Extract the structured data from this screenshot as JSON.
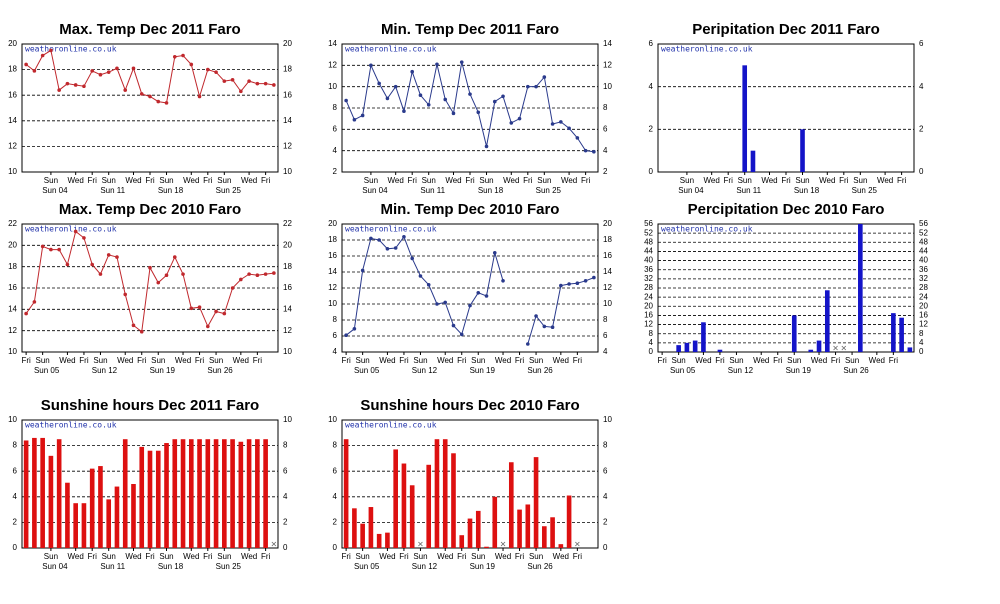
{
  "chart_data": [
    {
      "type": "line",
      "title": "Max. Temp Dec 2011 Faro",
      "watermark": "weatheronline.co.uk",
      "color": "#c0282d",
      "x": [
        1,
        2,
        3,
        4,
        5,
        6,
        7,
        8,
        9,
        10,
        11,
        12,
        13,
        14,
        15,
        16,
        17,
        18,
        19,
        20,
        21,
        22,
        23,
        24,
        25,
        26,
        27,
        28,
        29,
        30,
        31
      ],
      "values": [
        18.4,
        17.9,
        19.1,
        19.5,
        16.4,
        16.9,
        16.8,
        16.7,
        17.9,
        17.6,
        17.8,
        18.1,
        16.4,
        18.1,
        16.1,
        15.9,
        15.5,
        15.4,
        19.0,
        19.1,
        18.4,
        15.9,
        18.0,
        17.8,
        17.1,
        17.2,
        16.3,
        17.1,
        16.9,
        16.9,
        16.8
      ],
      "xlim": [
        0.5,
        31.5
      ],
      "ylim": [
        10,
        20
      ],
      "yticks": [
        10,
        12,
        14,
        16,
        18,
        20
      ],
      "grid": true,
      "xticks": [
        {
          "value": 4,
          "label": "Sun"
        },
        {
          "value": 7,
          "label": "Wed"
        },
        {
          "value": 9,
          "label": "Fri"
        },
        {
          "value": 11,
          "label": "Sun"
        },
        {
          "value": 14,
          "label": "Wed"
        },
        {
          "value": 16,
          "label": "Fri"
        },
        {
          "value": 18,
          "label": "Sun"
        },
        {
          "value": 21,
          "label": "Wed"
        },
        {
          "value": 23,
          "label": "Fri"
        },
        {
          "value": 25,
          "label": "Sun"
        },
        {
          "value": 28,
          "label": "Wed"
        },
        {
          "value": 30,
          "label": "Fri"
        }
      ],
      "week_ticks": [
        {
          "value": 4,
          "label": "Sun 04"
        },
        {
          "value": 11,
          "label": "Sun 11"
        },
        {
          "value": 18,
          "label": "Sun 18"
        },
        {
          "value": 25,
          "label": "Sun 25"
        }
      ]
    },
    {
      "type": "line",
      "title": "Min. Temp Dec 2011 Faro",
      "watermark": "weatheronline.co.uk",
      "color": "#2a3a8c",
      "x": [
        1,
        2,
        3,
        4,
        5,
        6,
        7,
        8,
        9,
        10,
        11,
        12,
        13,
        14,
        15,
        16,
        17,
        18,
        19,
        20,
        21,
        22,
        23,
        24,
        25,
        26,
        27,
        28,
        29,
        30,
        31
      ],
      "values": [
        8.7,
        6.9,
        7.3,
        12.0,
        10.3,
        8.9,
        10.0,
        7.7,
        11.4,
        9.2,
        8.3,
        12.1,
        8.8,
        7.5,
        12.3,
        9.3,
        7.6,
        4.4,
        8.6,
        9.1,
        6.6,
        7.0,
        10.0,
        10.0,
        10.9,
        6.5,
        6.7,
        6.1,
        5.2,
        4.0,
        3.9
      ],
      "xlim": [
        0.5,
        31.5
      ],
      "ylim": [
        2,
        14
      ],
      "yticks": [
        2,
        4,
        6,
        8,
        10,
        12,
        14
      ],
      "grid": true,
      "xticks": [
        {
          "value": 4,
          "label": "Sun"
        },
        {
          "value": 7,
          "label": "Wed"
        },
        {
          "value": 9,
          "label": "Fri"
        },
        {
          "value": 11,
          "label": "Sun"
        },
        {
          "value": 14,
          "label": "Wed"
        },
        {
          "value": 16,
          "label": "Fri"
        },
        {
          "value": 18,
          "label": "Sun"
        },
        {
          "value": 21,
          "label": "Wed"
        },
        {
          "value": 23,
          "label": "Fri"
        },
        {
          "value": 25,
          "label": "Sun"
        },
        {
          "value": 28,
          "label": "Wed"
        },
        {
          "value": 30,
          "label": "Fri"
        }
      ],
      "week_ticks": [
        {
          "value": 4,
          "label": "Sun 04"
        },
        {
          "value": 11,
          "label": "Sun 11"
        },
        {
          "value": 18,
          "label": "Sun 18"
        },
        {
          "value": 25,
          "label": "Sun 25"
        }
      ]
    },
    {
      "type": "bar",
      "title": "Peripitation Dec 2011 Faro",
      "watermark": "weatheronline.co.uk",
      "color": "#1414c8",
      "x": [
        1,
        2,
        3,
        4,
        5,
        6,
        7,
        8,
        9,
        10,
        11,
        12,
        13,
        14,
        15,
        16,
        17,
        18,
        19,
        20,
        21,
        22,
        23,
        24,
        25,
        26,
        27,
        28,
        29,
        30,
        31
      ],
      "values": [
        0,
        0,
        0,
        0,
        0,
        0,
        0,
        0,
        0,
        0,
        5,
        1,
        0,
        0,
        0,
        0,
        0,
        2,
        0,
        0,
        0,
        0,
        0,
        0,
        0,
        0,
        0,
        0,
        0,
        0,
        0
      ],
      "xlim": [
        0.5,
        31.5
      ],
      "ylim": [
        0,
        6
      ],
      "yticks": [
        0,
        2,
        4,
        6
      ],
      "grid": true,
      "xticks": [
        {
          "value": 4,
          "label": "Sun"
        },
        {
          "value": 7,
          "label": "Wed"
        },
        {
          "value": 9,
          "label": "Fri"
        },
        {
          "value": 11,
          "label": "Sun"
        },
        {
          "value": 14,
          "label": "Wed"
        },
        {
          "value": 16,
          "label": "Fri"
        },
        {
          "value": 18,
          "label": "Sun"
        },
        {
          "value": 21,
          "label": "Wed"
        },
        {
          "value": 23,
          "label": "Fri"
        },
        {
          "value": 25,
          "label": "Sun"
        },
        {
          "value": 28,
          "label": "Wed"
        },
        {
          "value": 30,
          "label": "Fri"
        }
      ],
      "week_ticks": [
        {
          "value": 4,
          "label": "Sun 04"
        },
        {
          "value": 11,
          "label": "Sun 11"
        },
        {
          "value": 18,
          "label": "Sun 18"
        },
        {
          "value": 25,
          "label": "Sun 25"
        }
      ]
    },
    {
      "type": "line",
      "title": "Max. Temp Dec 2010 Faro",
      "watermark": "weatheronline.co.uk",
      "color": "#c0282d",
      "x": [
        1,
        2,
        3,
        4,
        5,
        6,
        7,
        8,
        9,
        10,
        11,
        12,
        13,
        14,
        15,
        16,
        17,
        18,
        19,
        20,
        21,
        22,
        23,
        24,
        25,
        26,
        27,
        28,
        29,
        30,
        31
      ],
      "values": [
        13.6,
        14.7,
        19.9,
        19.6,
        19.6,
        18.2,
        21.3,
        20.7,
        18.2,
        17.3,
        19.1,
        18.9,
        15.4,
        12.5,
        11.9,
        17.9,
        16.5,
        17.2,
        18.9,
        17.3,
        14.1,
        14.2,
        12.4,
        13.8,
        13.6,
        16.0,
        16.8,
        17.3,
        17.2,
        17.3,
        17.4
      ],
      "xlim": [
        0.5,
        31.5
      ],
      "ylim": [
        10,
        22
      ],
      "yticks": [
        10,
        12,
        14,
        16,
        18,
        20,
        22
      ],
      "grid": true,
      "xticks": [
        {
          "value": 1,
          "label": "Fri"
        },
        {
          "value": 3,
          "label": "Sun"
        },
        {
          "value": 6,
          "label": "Wed"
        },
        {
          "value": 8,
          "label": "Fri"
        },
        {
          "value": 10,
          "label": "Sun"
        },
        {
          "value": 13,
          "label": "Wed"
        },
        {
          "value": 15,
          "label": "Fri"
        },
        {
          "value": 17,
          "label": "Sun"
        },
        {
          "value": 20,
          "label": "Wed"
        },
        {
          "value": 22,
          "label": "Fri"
        },
        {
          "value": 24,
          "label": "Sun"
        },
        {
          "value": 27,
          "label": "Wed"
        },
        {
          "value": 29,
          "label": "Fri"
        }
      ],
      "week_ticks": [
        {
          "value": 3,
          "label": "Sun 05"
        },
        {
          "value": 10,
          "label": "Sun 12"
        },
        {
          "value": 17,
          "label": "Sun 19"
        },
        {
          "value": 24,
          "label": "Sun 26"
        }
      ]
    },
    {
      "type": "line",
      "title": "Min. Temp Dec 2010 Faro",
      "watermark": "weatheronline.co.uk",
      "color": "#2a3a8c",
      "x": [
        1,
        2,
        3,
        4,
        5,
        6,
        7,
        8,
        9,
        10,
        11,
        12,
        13,
        14,
        15,
        16,
        17,
        18,
        19,
        20,
        21,
        22,
        23,
        24,
        25,
        26,
        27,
        28,
        29,
        30,
        31
      ],
      "values": [
        6.1,
        6.9,
        14.2,
        18.2,
        18.0,
        16.9,
        17.0,
        18.4,
        15.7,
        13.5,
        12.4,
        10.0,
        10.2,
        7.3,
        6.2,
        9.8,
        11.4,
        11.0,
        16.4,
        12.9,
        null,
        null,
        5.0,
        8.5,
        7.2,
        7.1,
        12.3,
        12.5,
        12.6,
        12.9,
        13.3
      ],
      "xlim": [
        0.5,
        31.5
      ],
      "ylim": [
        4,
        20
      ],
      "yticks": [
        4,
        6,
        8,
        10,
        12,
        14,
        16,
        18,
        20
      ],
      "grid": true,
      "xticks": [
        {
          "value": 1,
          "label": "Fri"
        },
        {
          "value": 3,
          "label": "Sun"
        },
        {
          "value": 6,
          "label": "Wed"
        },
        {
          "value": 8,
          "label": "Fri"
        },
        {
          "value": 10,
          "label": "Sun"
        },
        {
          "value": 13,
          "label": "Wed"
        },
        {
          "value": 15,
          "label": "Fri"
        },
        {
          "value": 17,
          "label": "Sun"
        },
        {
          "value": 20,
          "label": "Wed"
        },
        {
          "value": 22,
          "label": "Fri"
        },
        {
          "value": 24,
          "label": "Sun"
        },
        {
          "value": 27,
          "label": "Wed"
        },
        {
          "value": 29,
          "label": "Fri"
        }
      ],
      "week_ticks": [
        {
          "value": 3,
          "label": "Sun 05"
        },
        {
          "value": 10,
          "label": "Sun 12"
        },
        {
          "value": 17,
          "label": "Sun 19"
        },
        {
          "value": 24,
          "label": "Sun 26"
        }
      ]
    },
    {
      "type": "bar",
      "title": "Percipitation Dec 2010  Faro",
      "watermark": "weatheronline.co.uk",
      "color": "#1414c8",
      "x": [
        1,
        2,
        3,
        4,
        5,
        6,
        7,
        8,
        9,
        10,
        11,
        12,
        13,
        14,
        15,
        16,
        17,
        18,
        19,
        20,
        21,
        22,
        23,
        24,
        25,
        26,
        27,
        28,
        29,
        30,
        31
      ],
      "values": [
        0,
        0,
        3,
        4,
        5,
        13,
        0,
        1,
        0,
        0,
        0,
        0,
        0,
        0,
        0,
        0,
        16,
        0,
        1,
        5,
        27,
        null,
        null,
        0,
        56,
        0,
        0,
        0,
        17,
        15,
        2
      ],
      "xlim": [
        0.5,
        31.5
      ],
      "ylim": [
        0,
        56
      ],
      "yticks": [
        0,
        4,
        8,
        12,
        16,
        20,
        24,
        28,
        32,
        36,
        40,
        44,
        48,
        52,
        56
      ],
      "grid": true,
      "xticks": [
        {
          "value": 1,
          "label": "Fri"
        },
        {
          "value": 3,
          "label": "Sun"
        },
        {
          "value": 6,
          "label": "Wed"
        },
        {
          "value": 8,
          "label": "Fri"
        },
        {
          "value": 10,
          "label": "Sun"
        },
        {
          "value": 13,
          "label": "Wed"
        },
        {
          "value": 15,
          "label": "Fri"
        },
        {
          "value": 17,
          "label": "Sun"
        },
        {
          "value": 20,
          "label": "Wed"
        },
        {
          "value": 22,
          "label": "Fri"
        },
        {
          "value": 24,
          "label": "Sun"
        },
        {
          "value": 27,
          "label": "Wed"
        },
        {
          "value": 29,
          "label": "Fri"
        }
      ],
      "week_ticks": [
        {
          "value": 3,
          "label": "Sun 05"
        },
        {
          "value": 10,
          "label": "Sun 12"
        },
        {
          "value": 17,
          "label": "Sun 19"
        },
        {
          "value": 24,
          "label": "Sun 26"
        }
      ]
    },
    {
      "type": "bar",
      "title": "Sunshine hours Dec 2011 Faro",
      "watermark": "weatheronline.co.uk",
      "color": "#dd1010",
      "x": [
        1,
        2,
        3,
        4,
        5,
        6,
        7,
        8,
        9,
        10,
        11,
        12,
        13,
        14,
        15,
        16,
        17,
        18,
        19,
        20,
        21,
        22,
        23,
        24,
        25,
        26,
        27,
        28,
        29,
        30,
        31
      ],
      "values": [
        8.4,
        8.6,
        8.6,
        7.2,
        8.5,
        5.1,
        3.5,
        3.5,
        6.2,
        6.4,
        3.8,
        4.8,
        8.5,
        5.0,
        7.9,
        7.6,
        7.6,
        8.2,
        8.5,
        8.5,
        8.5,
        8.5,
        8.5,
        8.5,
        8.5,
        8.5,
        8.3,
        8.5,
        8.5,
        8.5,
        null
      ],
      "xlim": [
        0.5,
        31.5
      ],
      "ylim": [
        0,
        10
      ],
      "yticks": [
        0,
        2,
        4,
        6,
        8,
        10
      ],
      "grid": true,
      "xticks": [
        {
          "value": 4,
          "label": "Sun"
        },
        {
          "value": 7,
          "label": "Wed"
        },
        {
          "value": 9,
          "label": "Fri"
        },
        {
          "value": 11,
          "label": "Sun"
        },
        {
          "value": 14,
          "label": "Wed"
        },
        {
          "value": 16,
          "label": "Fri"
        },
        {
          "value": 18,
          "label": "Sun"
        },
        {
          "value": 21,
          "label": "Wed"
        },
        {
          "value": 23,
          "label": "Fri"
        },
        {
          "value": 25,
          "label": "Sun"
        },
        {
          "value": 28,
          "label": "Wed"
        },
        {
          "value": 30,
          "label": "Fri"
        }
      ],
      "week_ticks": [
        {
          "value": 4,
          "label": "Sun 04"
        },
        {
          "value": 11,
          "label": "Sun 11"
        },
        {
          "value": 18,
          "label": "Sun 18"
        },
        {
          "value": 25,
          "label": "Sun 25"
        }
      ]
    },
    {
      "type": "bar",
      "title": "Sunshine hours Dec 2010 Faro",
      "watermark": "weatheronline.co.uk",
      "color": "#dd1010",
      "x": [
        1,
        2,
        3,
        4,
        5,
        6,
        7,
        8,
        9,
        10,
        11,
        12,
        13,
        14,
        15,
        16,
        17,
        18,
        19,
        20,
        21,
        22,
        23,
        24,
        25,
        26,
        27,
        28,
        29,
        30,
        31
      ],
      "values": [
        8.5,
        3.1,
        1.9,
        3.2,
        1.1,
        1.2,
        7.7,
        6.6,
        4.9,
        null,
        6.5,
        8.5,
        8.5,
        7.4,
        1.0,
        2.3,
        2.9,
        0.1,
        4.0,
        null,
        6.7,
        3.0,
        3.4,
        7.1,
        1.7,
        2.4,
        0.3,
        4.1,
        null,
        0,
        0
      ],
      "xlim": [
        0.5,
        31.5
      ],
      "ylim": [
        0,
        10
      ],
      "yticks": [
        0,
        2,
        4,
        6,
        8,
        10
      ],
      "grid": true,
      "xticks": [
        {
          "value": 1,
          "label": "Fri"
        },
        {
          "value": 3,
          "label": "Sun"
        },
        {
          "value": 6,
          "label": "Wed"
        },
        {
          "value": 8,
          "label": "Fri"
        },
        {
          "value": 10,
          "label": "Sun"
        },
        {
          "value": 13,
          "label": "Wed"
        },
        {
          "value": 15,
          "label": "Fri"
        },
        {
          "value": 17,
          "label": "Sun"
        },
        {
          "value": 20,
          "label": "Wed"
        },
        {
          "value": 22,
          "label": "Fri"
        },
        {
          "value": 24,
          "label": "Sun"
        },
        {
          "value": 27,
          "label": "Wed"
        },
        {
          "value": 29,
          "label": "Fri"
        }
      ],
      "week_ticks": [
        {
          "value": 3,
          "label": "Sun 05"
        },
        {
          "value": 10,
          "label": "Sun 12"
        },
        {
          "value": 17,
          "label": "Sun 19"
        },
        {
          "value": 24,
          "label": "Sun 26"
        }
      ]
    }
  ]
}
